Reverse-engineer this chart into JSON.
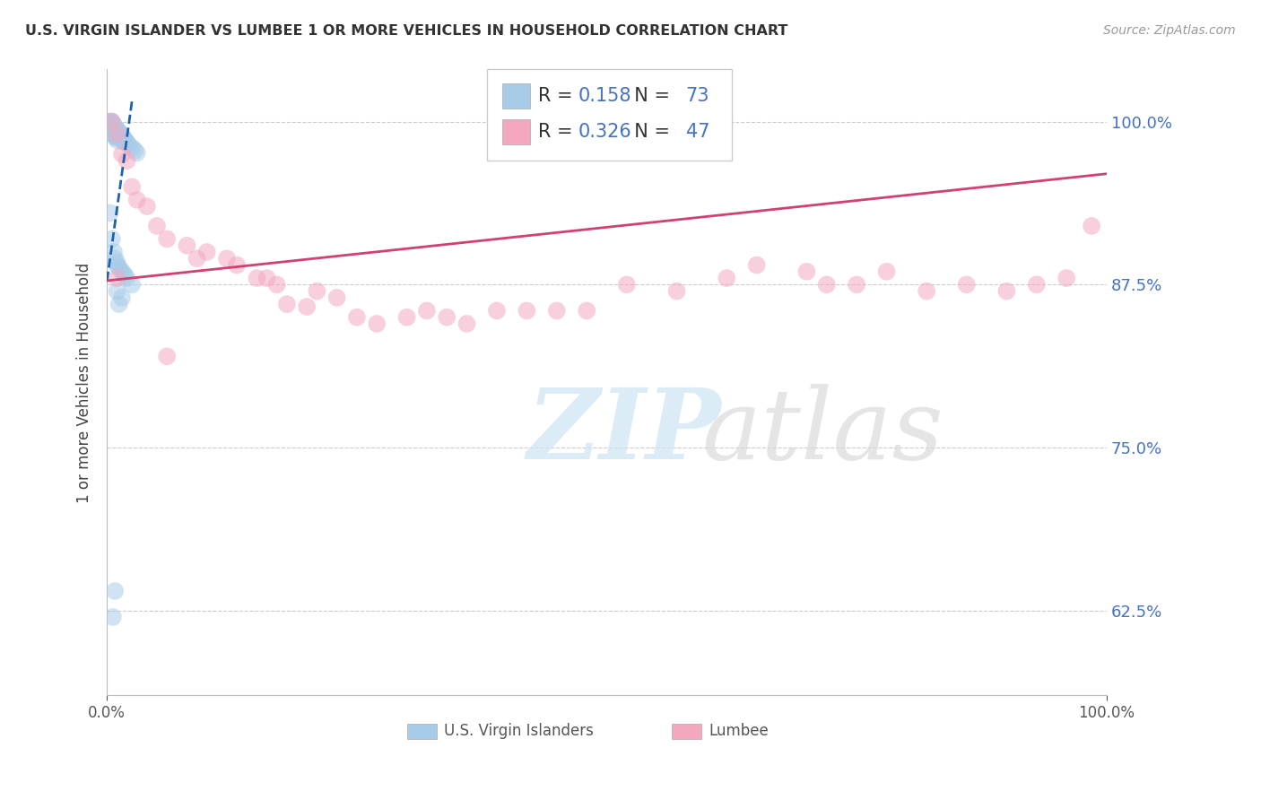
{
  "title": "U.S. VIRGIN ISLANDER VS LUMBEE 1 OR MORE VEHICLES IN HOUSEHOLD CORRELATION CHART",
  "source": "Source: ZipAtlas.com",
  "ylabel": "1 or more Vehicles in Household",
  "legend_label1": "U.S. Virgin Islanders",
  "legend_label2": "Lumbee",
  "r1": 0.158,
  "n1": 73,
  "r2": 0.326,
  "n2": 47,
  "ytick_labels": [
    "62.5%",
    "75.0%",
    "87.5%",
    "100.0%"
  ],
  "ytick_values": [
    0.625,
    0.75,
    0.875,
    1.0
  ],
  "xmin": 0.0,
  "xmax": 1.0,
  "ymin": 0.56,
  "ymax": 1.04,
  "color_blue": "#a8cce8",
  "color_pink": "#f4a8c0",
  "color_trend_blue": "#2060b0",
  "color_trend_pink": "#d04070",
  "blue_points_x": [
    0.002,
    0.003,
    0.004,
    0.004,
    0.005,
    0.005,
    0.005,
    0.005,
    0.005,
    0.006,
    0.006,
    0.006,
    0.006,
    0.007,
    0.007,
    0.007,
    0.007,
    0.007,
    0.008,
    0.008,
    0.008,
    0.008,
    0.008,
    0.009,
    0.009,
    0.009,
    0.009,
    0.01,
    0.01,
    0.01,
    0.01,
    0.01,
    0.011,
    0.011,
    0.011,
    0.012,
    0.012,
    0.012,
    0.013,
    0.013,
    0.014,
    0.014,
    0.015,
    0.015,
    0.016,
    0.016,
    0.017,
    0.017,
    0.018,
    0.018,
    0.019,
    0.02,
    0.022,
    0.025,
    0.028,
    0.03,
    0.003,
    0.005,
    0.007,
    0.008,
    0.01,
    0.01,
    0.012,
    0.014,
    0.016,
    0.018,
    0.02,
    0.025,
    0.01,
    0.015,
    0.012,
    0.008,
    0.006
  ],
  "blue_points_y": [
    1.0,
    1.0,
    1.0,
    0.998,
    1.0,
    0.998,
    0.996,
    0.994,
    0.992,
    0.998,
    0.996,
    0.994,
    0.992,
    0.997,
    0.996,
    0.994,
    0.992,
    0.99,
    0.996,
    0.994,
    0.992,
    0.99,
    0.988,
    0.995,
    0.993,
    0.991,
    0.989,
    0.994,
    0.992,
    0.99,
    0.988,
    0.986,
    0.993,
    0.991,
    0.989,
    0.992,
    0.99,
    0.988,
    0.991,
    0.989,
    0.99,
    0.988,
    0.989,
    0.987,
    0.988,
    0.986,
    0.987,
    0.985,
    0.986,
    0.984,
    0.985,
    0.984,
    0.982,
    0.98,
    0.978,
    0.976,
    0.93,
    0.91,
    0.9,
    0.895,
    0.892,
    0.89,
    0.888,
    0.886,
    0.884,
    0.882,
    0.88,
    0.875,
    0.87,
    0.865,
    0.86,
    0.64,
    0.62
  ],
  "pink_points_x": [
    0.005,
    0.01,
    0.015,
    0.02,
    0.025,
    0.03,
    0.04,
    0.05,
    0.06,
    0.08,
    0.09,
    0.1,
    0.12,
    0.13,
    0.15,
    0.16,
    0.17,
    0.18,
    0.2,
    0.21,
    0.23,
    0.25,
    0.27,
    0.3,
    0.32,
    0.34,
    0.36,
    0.39,
    0.42,
    0.45,
    0.48,
    0.52,
    0.57,
    0.62,
    0.65,
    0.7,
    0.72,
    0.75,
    0.78,
    0.82,
    0.86,
    0.9,
    0.93,
    0.96,
    0.985,
    0.01,
    0.06
  ],
  "pink_points_y": [
    1.0,
    0.99,
    0.975,
    0.97,
    0.95,
    0.94,
    0.935,
    0.92,
    0.91,
    0.905,
    0.895,
    0.9,
    0.895,
    0.89,
    0.88,
    0.88,
    0.875,
    0.86,
    0.858,
    0.87,
    0.865,
    0.85,
    0.845,
    0.85,
    0.855,
    0.85,
    0.845,
    0.855,
    0.855,
    0.855,
    0.855,
    0.875,
    0.87,
    0.88,
    0.89,
    0.885,
    0.875,
    0.875,
    0.885,
    0.87,
    0.875,
    0.87,
    0.875,
    0.88,
    0.92,
    0.88,
    0.82
  ],
  "blue_trend_x": [
    0.003,
    0.028
  ],
  "blue_trend_y_intercept": 0.878,
  "blue_trend_slope": 5.5,
  "pink_trend_x_start": 0.0,
  "pink_trend_x_end": 1.0,
  "pink_trend_y_start": 0.878,
  "pink_trend_y_end": 0.96
}
